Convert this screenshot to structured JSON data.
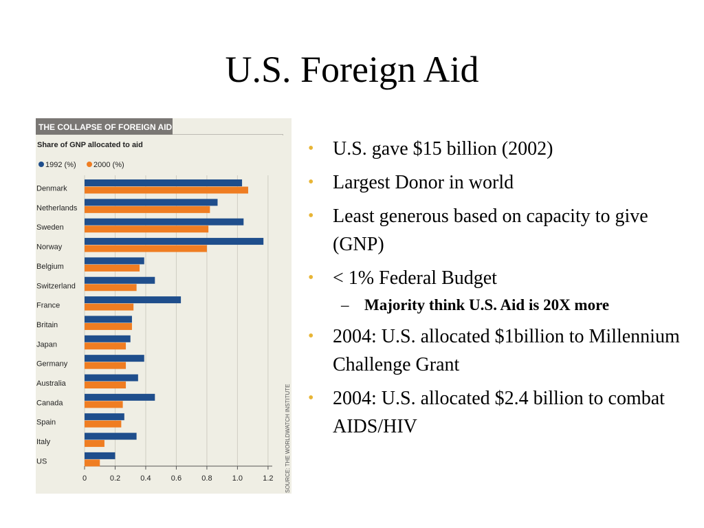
{
  "slide": {
    "title": "U.S. Foreign Aid",
    "bullets": [
      "U.S. gave $15 billion (2002)",
      "Largest Donor in world",
      "Least generous based on capacity to give (GNP)",
      "< 1% Federal Budget",
      "Majority think U.S. Aid is 20X more",
      "2004: U.S. allocated $1billion to Millennium Challenge Grant",
      "2004: U.S. allocated $2.4 billion to combat AIDS/HIV"
    ]
  },
  "chart_data": {
    "type": "bar",
    "orientation": "horizontal",
    "header": "THE COLLAPSE OF FOREIGN AID",
    "title": "Share of GNP allocated to aid",
    "source": "SOURCE: THE WORLDWATCH INSTITUTE",
    "categories": [
      "Denmark",
      "Netherlands",
      "Sweden",
      "Norway",
      "Belgium",
      "Switzerland",
      "France",
      "Britain",
      "Japan",
      "Germany",
      "Australia",
      "Canada",
      "Spain",
      "Italy",
      "US"
    ],
    "series": [
      {
        "name": "1992 (%)",
        "color": "#1f4e8c",
        "values": [
          1.03,
          0.87,
          1.04,
          1.17,
          0.39,
          0.46,
          0.63,
          0.31,
          0.3,
          0.39,
          0.35,
          0.46,
          0.26,
          0.34,
          0.2
        ]
      },
      {
        "name": "2000 (%)",
        "color": "#ef7d22",
        "values": [
          1.07,
          0.82,
          0.81,
          0.8,
          0.36,
          0.34,
          0.32,
          0.31,
          0.27,
          0.27,
          0.27,
          0.25,
          0.24,
          0.13,
          0.1
        ]
      }
    ],
    "xlim": [
      0,
      1.25
    ],
    "xticks": [
      0,
      0.2,
      0.4,
      0.6,
      0.8,
      1.0,
      1.2
    ],
    "xtick_labels": [
      "0",
      "0.2",
      "0.4",
      "0.6",
      "0.8",
      "1.0",
      "1.2"
    ],
    "legend_position": "top-left",
    "header_color": "#7a7774"
  }
}
